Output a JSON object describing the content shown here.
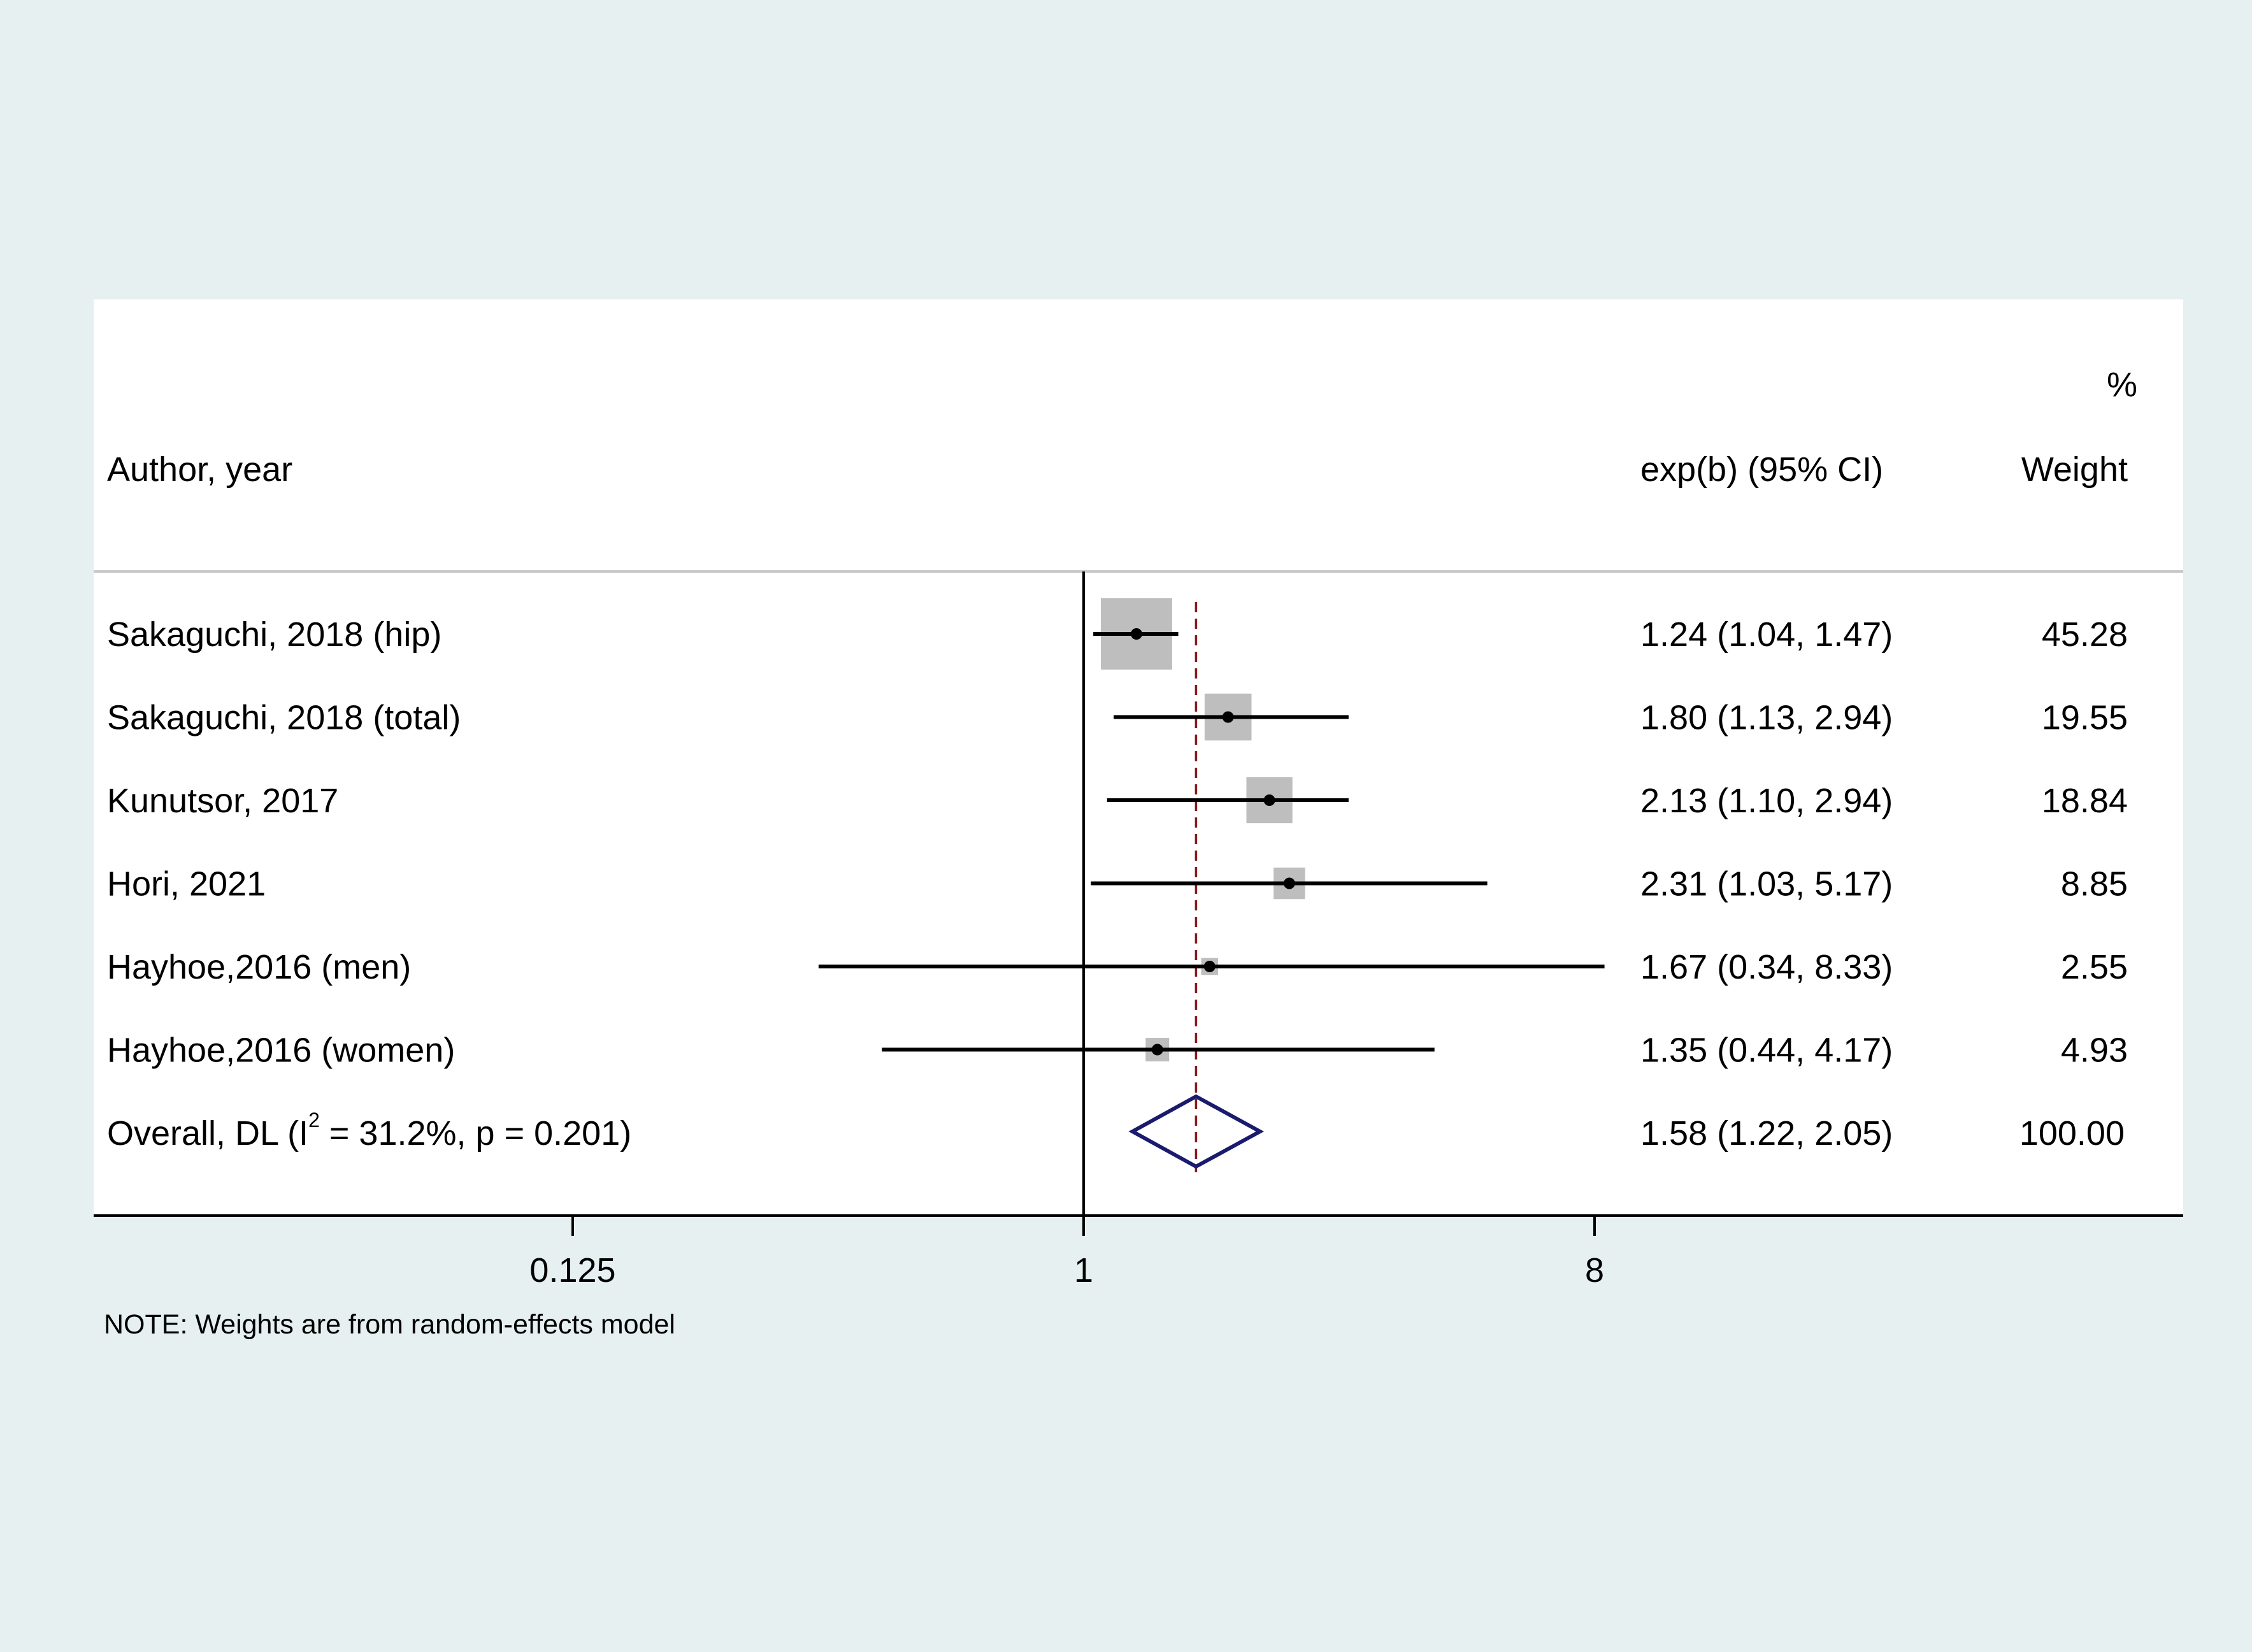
{
  "chart_data": {
    "type": "forest",
    "x_scale": "log2",
    "xlim": [
      0.0625,
      64
    ],
    "x_ticks": [
      0.125,
      1,
      8
    ],
    "x_tick_labels": [
      "0.125",
      "1",
      "8"
    ],
    "null_line": 1,
    "overall_line": 1.58,
    "headers": {
      "study": "Author, year",
      "estimate": "exp(b) (95% CI)",
      "weight_top": "%",
      "weight": "Weight"
    },
    "studies": [
      {
        "label": "Sakaguchi, 2018 (hip)",
        "est": 1.24,
        "lo": 1.04,
        "hi": 1.47,
        "ci_text": "1.24 (1.04, 1.47)",
        "weight": 45.28,
        "weight_text": "45.28"
      },
      {
        "label": "Sakaguchi, 2018 (total)",
        "est": 1.8,
        "lo": 1.13,
        "hi": 2.94,
        "ci_text": "1.80 (1.13, 2.94)",
        "weight": 19.55,
        "weight_text": "19.55"
      },
      {
        "label": "Kunutsor, 2017",
        "est": 2.13,
        "lo": 1.1,
        "hi": 2.94,
        "ci_text": "2.13 (1.10, 2.94)",
        "weight": 18.84,
        "weight_text": "18.84"
      },
      {
        "label": "Hori, 2021",
        "est": 2.31,
        "lo": 1.03,
        "hi": 5.17,
        "ci_text": "2.31 (1.03, 5.17)",
        "weight": 8.85,
        "weight_text": "8.85"
      },
      {
        "label": "Hayhoe,2016 (men)",
        "est": 1.67,
        "lo": 0.34,
        "hi": 8.33,
        "ci_text": "1.67 (0.34, 8.33)",
        "weight": 2.55,
        "weight_text": "2.55"
      },
      {
        "label": "Hayhoe,2016 (women)",
        "est": 1.35,
        "lo": 0.44,
        "hi": 4.17,
        "ci_text": "1.35 (0.44, 4.17)",
        "weight": 4.93,
        "weight_text": "4.93"
      }
    ],
    "overall": {
      "label_pre": "Overall, DL (I",
      "label_sup": "2",
      "label_post": " = 31.2%, p = 0.201)",
      "est": 1.58,
      "lo": 1.22,
      "hi": 2.05,
      "ci_text": "1.58 (1.22, 2.05)",
      "weight_text": "100.00"
    },
    "note": "NOTE: Weights are from random-effects model",
    "colors": {
      "outer_background": "#e6f0f0",
      "plot_background": "#ffffff",
      "weight_box": "#bebebe",
      "ci_line": "#000000",
      "null_line": "#000000",
      "overall_line": "#8b1a1a",
      "diamond": "#1a1a6e"
    }
  }
}
